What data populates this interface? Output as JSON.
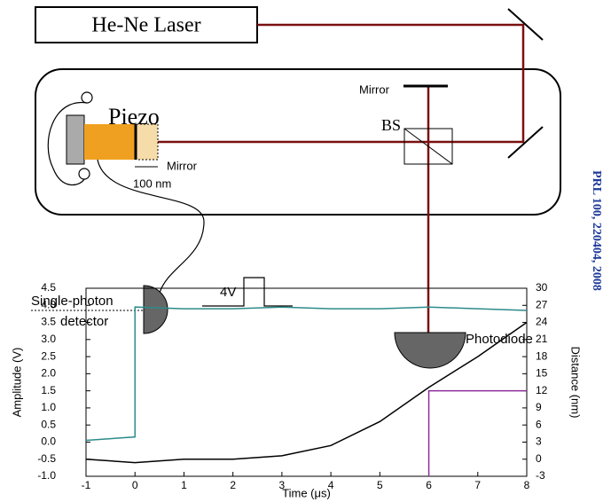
{
  "diagram": {
    "laser": "He-Ne Laser",
    "piezo": "Piezo",
    "mirror_top": "Mirror",
    "beam_splitter": "BS",
    "mirror_piezo": "Mirror",
    "displacement": "100 nm",
    "detector_line1": "Single-photon",
    "detector_line2": "detector",
    "pulse": "4V",
    "photodiode": "Photodiode",
    "citation": "PRL 100, 220404, 2008"
  },
  "chart_data": {
    "type": "line",
    "xlabel": "Time (μs)",
    "ylabel": "Amplitude (V)",
    "y2label": "Distance (nm)",
    "xlim": [
      -1,
      8
    ],
    "xticks": [
      -1,
      0,
      1,
      2,
      3,
      4,
      5,
      6,
      7,
      8
    ],
    "ylim": [
      -1,
      4.5
    ],
    "yticks": [
      {
        "value": -1,
        "label": "-1.0"
      },
      -0.5,
      {
        "value": 0,
        "label": "0.0"
      },
      0.5,
      {
        "value": 1,
        "label": "1.0"
      },
      1.5,
      {
        "value": 2,
        "label": "2.0"
      },
      2.5,
      {
        "value": 3,
        "label": "3.0"
      },
      3.5,
      {
        "value": 4,
        "label": "4.0"
      },
      4.5
    ],
    "y2lim": [
      -3,
      30
    ],
    "y2ticks": [
      -3,
      0,
      3,
      6,
      9,
      12,
      15,
      18,
      21,
      24,
      27,
      30
    ],
    "series": [
      {
        "color": "#2e8b8b",
        "x": [
          -1,
          -0.5,
          0,
          0,
          1,
          2,
          3,
          4,
          5,
          6,
          7,
          8
        ],
        "values": [
          0.05,
          0.1,
          0.15,
          3.95,
          3.9,
          3.9,
          3.95,
          3.9,
          3.9,
          3.95,
          3.9,
          3.85
        ]
      },
      {
        "color": "#000000",
        "axis": "y2",
        "x": [
          -1,
          0,
          1,
          2,
          3,
          4,
          5,
          6,
          7,
          8
        ],
        "values": [
          0,
          -0.6,
          0,
          0,
          0.6,
          2.4,
          6.6,
          12.6,
          18,
          24
        ]
      },
      {
        "color": "#8b2e9b",
        "axis": "y2",
        "x": [
          6,
          6,
          8
        ],
        "values": [
          -3,
          12,
          12
        ]
      }
    ]
  }
}
